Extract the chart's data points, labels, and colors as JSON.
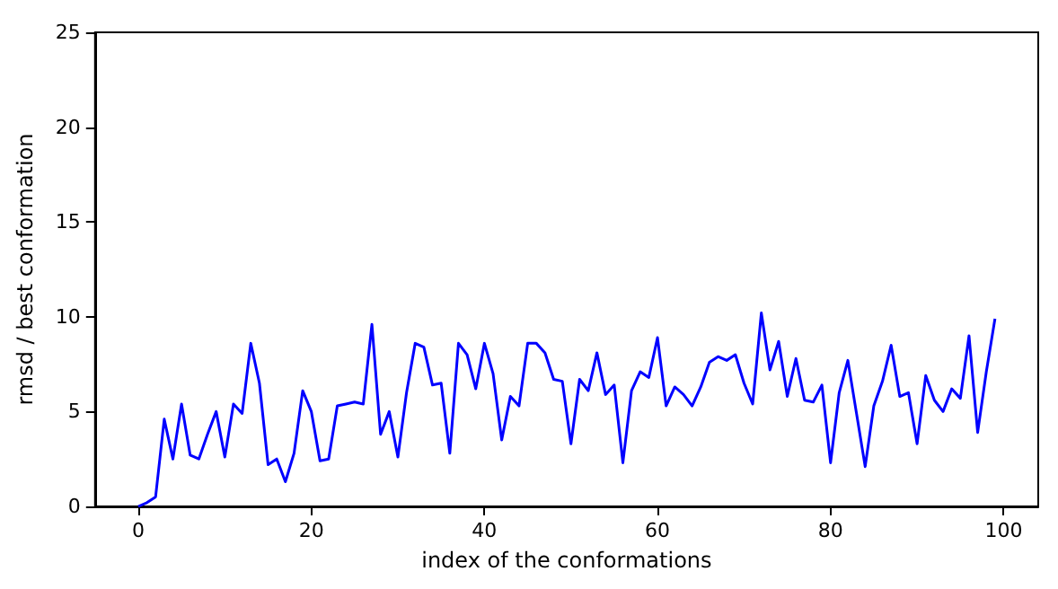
{
  "chart_data": {
    "type": "line",
    "xlabel": "index of the conformations",
    "ylabel": "rmsd / best conformation",
    "x": [
      0,
      1,
      2,
      3,
      4,
      5,
      6,
      7,
      8,
      9,
      10,
      11,
      12,
      13,
      14,
      15,
      16,
      17,
      18,
      19,
      20,
      21,
      22,
      23,
      24,
      25,
      26,
      27,
      28,
      29,
      30,
      31,
      32,
      33,
      34,
      35,
      36,
      37,
      38,
      39,
      40,
      41,
      42,
      43,
      44,
      45,
      46,
      47,
      48,
      49,
      50,
      51,
      52,
      53,
      54,
      55,
      56,
      57,
      58,
      59,
      60,
      61,
      62,
      63,
      64,
      65,
      66,
      67,
      68,
      69,
      70,
      71,
      72,
      73,
      74,
      75,
      76,
      77,
      78,
      79,
      80,
      81,
      82,
      83,
      84,
      85,
      86,
      87,
      88,
      89,
      90,
      91,
      92,
      93,
      94,
      95,
      96,
      97,
      98,
      99
    ],
    "series": [
      {
        "color": "#0000ff",
        "values": [
          0,
          0.2,
          0.5,
          4.6,
          2.5,
          5.4,
          2.7,
          2.5,
          3.8,
          5.0,
          2.6,
          5.4,
          4.9,
          8.6,
          6.5,
          2.2,
          2.5,
          1.3,
          2.8,
          6.1,
          5.0,
          2.4,
          2.5,
          5.3,
          5.4,
          5.5,
          5.4,
          9.6,
          3.8,
          5.0,
          2.6,
          6.0,
          8.6,
          8.4,
          6.4,
          6.5,
          2.8,
          8.6,
          8.0,
          6.2,
          8.6,
          7.0,
          3.5,
          5.8,
          5.3,
          8.6,
          8.6,
          8.1,
          6.7,
          6.6,
          3.3,
          6.7,
          6.1,
          8.1,
          5.9,
          6.4,
          2.3,
          6.1,
          7.1,
          6.8,
          8.9,
          5.3,
          6.3,
          5.9,
          5.3,
          6.3,
          7.6,
          7.9,
          7.7,
          8.0,
          6.5,
          5.4,
          10.2,
          7.2,
          8.7,
          5.8,
          7.8,
          5.6,
          5.5,
          6.4,
          2.3,
          6.0,
          7.7,
          4.9,
          2.1,
          5.3,
          6.6,
          8.5,
          5.8,
          6.0,
          3.3,
          6.9,
          5.6,
          5.0,
          6.2,
          5.7,
          9.0,
          3.9,
          7.1,
          9.9
        ]
      }
    ],
    "xlim": [
      -5,
      104
    ],
    "xticks": [
      0,
      20,
      40,
      60,
      80,
      100
    ],
    "ylim": [
      0,
      25
    ],
    "yticks": [
      0,
      5,
      10,
      15,
      20,
      25
    ],
    "grid": false,
    "marker": "none",
    "line_style": "solid"
  }
}
